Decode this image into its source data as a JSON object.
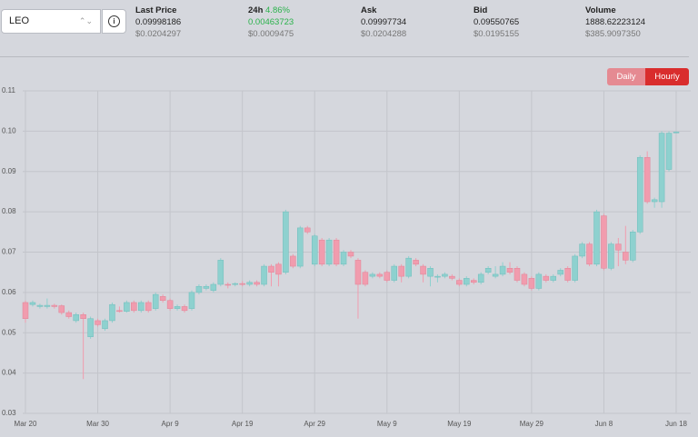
{
  "header": {
    "selector": "LEO",
    "stats": [
      {
        "label": "Last Price",
        "value": "0.09998186",
        "usd": "$0.0204297"
      },
      {
        "label": "24h",
        "change": "4.86%",
        "value": "0.00463723",
        "usd": "$0.0009475"
      },
      {
        "label": "Ask",
        "value": "0.09997734",
        "usd": "$0.0204288"
      },
      {
        "label": "Bid",
        "value": "0.09550765",
        "usd": "$0.0195155"
      },
      {
        "label": "Volume",
        "value": "1888.62223124",
        "usd": "$385.9097350"
      }
    ]
  },
  "buttons": {
    "daily": "Daily",
    "hourly": "Hourly"
  },
  "chart_data": {
    "type": "candlestick",
    "up_color": "#8ed1cf",
    "down_color": "#f19cae",
    "grid": true,
    "categories": [
      "Mar 20",
      null,
      null,
      null,
      null,
      null,
      null,
      null,
      null,
      null,
      "Mar 30",
      null,
      null,
      null,
      null,
      null,
      null,
      null,
      null,
      null,
      "Apr 9",
      null,
      null,
      null,
      null,
      null,
      null,
      null,
      null,
      null,
      "Apr 19",
      null,
      null,
      null,
      null,
      null,
      null,
      null,
      null,
      null,
      "Apr 29",
      null,
      null,
      null,
      null,
      null,
      null,
      null,
      null,
      null,
      "May 9",
      null,
      null,
      null,
      null,
      null,
      null,
      null,
      null,
      null,
      "May 19",
      null,
      null,
      null,
      null,
      null,
      null,
      null,
      null,
      null,
      "May 29",
      null,
      null,
      null,
      null,
      null,
      null,
      null,
      null,
      null,
      "Jun 8",
      null,
      null,
      null,
      null,
      null,
      null,
      null,
      null,
      null,
      "Jun 18"
    ],
    "candles": [
      [
        0.0575,
        0.058,
        0.0525,
        0.0535
      ],
      [
        0.057,
        0.058,
        0.0565,
        0.0575
      ],
      [
        0.0565,
        0.0572,
        0.056,
        0.0568
      ],
      [
        0.0565,
        0.0585,
        0.056,
        0.0568
      ],
      [
        0.0568,
        0.0572,
        0.056,
        0.0565
      ],
      [
        0.0567,
        0.057,
        0.0545,
        0.055
      ],
      [
        0.055,
        0.0555,
        0.0535,
        0.054
      ],
      [
        0.053,
        0.055,
        0.0525,
        0.0545
      ],
      [
        0.0545,
        0.055,
        0.0385,
        0.0535
      ],
      [
        0.049,
        0.054,
        0.0485,
        0.0535
      ],
      [
        0.053,
        0.0535,
        0.0515,
        0.052
      ],
      [
        0.051,
        0.0535,
        0.0505,
        0.053
      ],
      [
        0.053,
        0.0575,
        0.0525,
        0.057
      ],
      [
        0.0555,
        0.0565,
        0.055,
        0.0553
      ],
      [
        0.0553,
        0.058,
        0.055,
        0.0575
      ],
      [
        0.0575,
        0.058,
        0.055,
        0.0555
      ],
      [
        0.0555,
        0.058,
        0.055,
        0.0575
      ],
      [
        0.0575,
        0.058,
        0.055,
        0.0555
      ],
      [
        0.056,
        0.06,
        0.0555,
        0.0595
      ],
      [
        0.059,
        0.0595,
        0.0575,
        0.058
      ],
      [
        0.058,
        0.0585,
        0.0555,
        0.056
      ],
      [
        0.056,
        0.057,
        0.0555,
        0.0565
      ],
      [
        0.0565,
        0.057,
        0.055,
        0.0555
      ],
      [
        0.056,
        0.0605,
        0.0555,
        0.06
      ],
      [
        0.06,
        0.062,
        0.0595,
        0.0615
      ],
      [
        0.061,
        0.062,
        0.0605,
        0.0615
      ],
      [
        0.0605,
        0.0625,
        0.06,
        0.062
      ],
      [
        0.062,
        0.0685,
        0.0615,
        0.068
      ],
      [
        0.062,
        0.0625,
        0.061,
        0.0618
      ],
      [
        0.062,
        0.0625,
        0.0615,
        0.0622
      ],
      [
        0.0622,
        0.0628,
        0.0615,
        0.062
      ],
      [
        0.062,
        0.063,
        0.0615,
        0.0625
      ],
      [
        0.0625,
        0.063,
        0.0615,
        0.062
      ],
      [
        0.062,
        0.067,
        0.0615,
        0.0665
      ],
      [
        0.0665,
        0.067,
        0.0615,
        0.065
      ],
      [
        0.067,
        0.0675,
        0.0615,
        0.0645
      ],
      [
        0.065,
        0.0805,
        0.0645,
        0.08
      ],
      [
        0.069,
        0.0695,
        0.066,
        0.0665
      ],
      [
        0.0665,
        0.0765,
        0.066,
        0.076
      ],
      [
        0.076,
        0.0765,
        0.0745,
        0.075
      ],
      [
        0.067,
        0.0745,
        0.0665,
        0.074
      ],
      [
        0.073,
        0.0735,
        0.0665,
        0.067
      ],
      [
        0.067,
        0.0735,
        0.0665,
        0.073
      ],
      [
        0.073,
        0.0735,
        0.0665,
        0.067
      ],
      [
        0.067,
        0.0705,
        0.0665,
        0.07
      ],
      [
        0.07,
        0.0705,
        0.0685,
        0.069
      ],
      [
        0.068,
        0.0685,
        0.0535,
        0.062
      ],
      [
        0.065,
        0.0655,
        0.0615,
        0.062
      ],
      [
        0.064,
        0.065,
        0.0635,
        0.0645
      ],
      [
        0.0645,
        0.065,
        0.0635,
        0.064
      ],
      [
        0.065,
        0.0655,
        0.0625,
        0.063
      ],
      [
        0.063,
        0.067,
        0.0625,
        0.0665
      ],
      [
        0.0665,
        0.067,
        0.0625,
        0.064
      ],
      [
        0.064,
        0.069,
        0.0635,
        0.0685
      ],
      [
        0.068,
        0.0685,
        0.0665,
        0.067
      ],
      [
        0.0665,
        0.067,
        0.0625,
        0.0645
      ],
      [
        0.064,
        0.0665,
        0.0615,
        0.066
      ],
      [
        0.064,
        0.0645,
        0.0625,
        0.064
      ],
      [
        0.064,
        0.065,
        0.0635,
        0.0645
      ],
      [
        0.064,
        0.0645,
        0.063,
        0.0635
      ],
      [
        0.063,
        0.0635,
        0.0615,
        0.062
      ],
      [
        0.062,
        0.064,
        0.0615,
        0.0635
      ],
      [
        0.063,
        0.0635,
        0.062,
        0.0625
      ],
      [
        0.0625,
        0.065,
        0.062,
        0.0645
      ],
      [
        0.065,
        0.0665,
        0.0645,
        0.066
      ],
      [
        0.064,
        0.0665,
        0.0635,
        0.0645
      ],
      [
        0.0645,
        0.0675,
        0.064,
        0.0665
      ],
      [
        0.066,
        0.0675,
        0.0645,
        0.065
      ],
      [
        0.066,
        0.0665,
        0.0625,
        0.063
      ],
      [
        0.0645,
        0.065,
        0.0615,
        0.062
      ],
      [
        0.0635,
        0.064,
        0.0605,
        0.061
      ],
      [
        0.061,
        0.065,
        0.0605,
        0.0645
      ],
      [
        0.064,
        0.0645,
        0.0625,
        0.063
      ],
      [
        0.063,
        0.0645,
        0.0625,
        0.064
      ],
      [
        0.0645,
        0.066,
        0.064,
        0.0655
      ],
      [
        0.066,
        0.0665,
        0.0625,
        0.063
      ],
      [
        0.063,
        0.0695,
        0.0625,
        0.069
      ],
      [
        0.069,
        0.0725,
        0.0685,
        0.072
      ],
      [
        0.072,
        0.0725,
        0.0665,
        0.067
      ],
      [
        0.067,
        0.0805,
        0.0665,
        0.08
      ],
      [
        0.079,
        0.0795,
        0.0655,
        0.066
      ],
      [
        0.066,
        0.0725,
        0.0655,
        0.072
      ],
      [
        0.072,
        0.0735,
        0.0665,
        0.0705
      ],
      [
        0.07,
        0.0765,
        0.067,
        0.068
      ],
      [
        0.068,
        0.0755,
        0.0675,
        0.075
      ],
      [
        0.075,
        0.094,
        0.0745,
        0.0935
      ],
      [
        0.0935,
        0.095,
        0.082,
        0.0825
      ],
      [
        0.0825,
        0.0835,
        0.081,
        0.083
      ],
      [
        0.0825,
        0.1,
        0.081,
        0.0995
      ],
      [
        0.0905,
        0.1,
        0.09,
        0.0995
      ],
      [
        0.0998,
        0.1,
        0.0995,
        0.0998
      ]
    ],
    "ylim": [
      0.03,
      0.11
    ],
    "yticks": [
      0.03,
      0.04,
      0.05,
      0.06,
      0.07,
      0.08,
      0.09,
      {
        "value": 0.1,
        "label": "0.10"
      },
      0.11
    ]
  }
}
